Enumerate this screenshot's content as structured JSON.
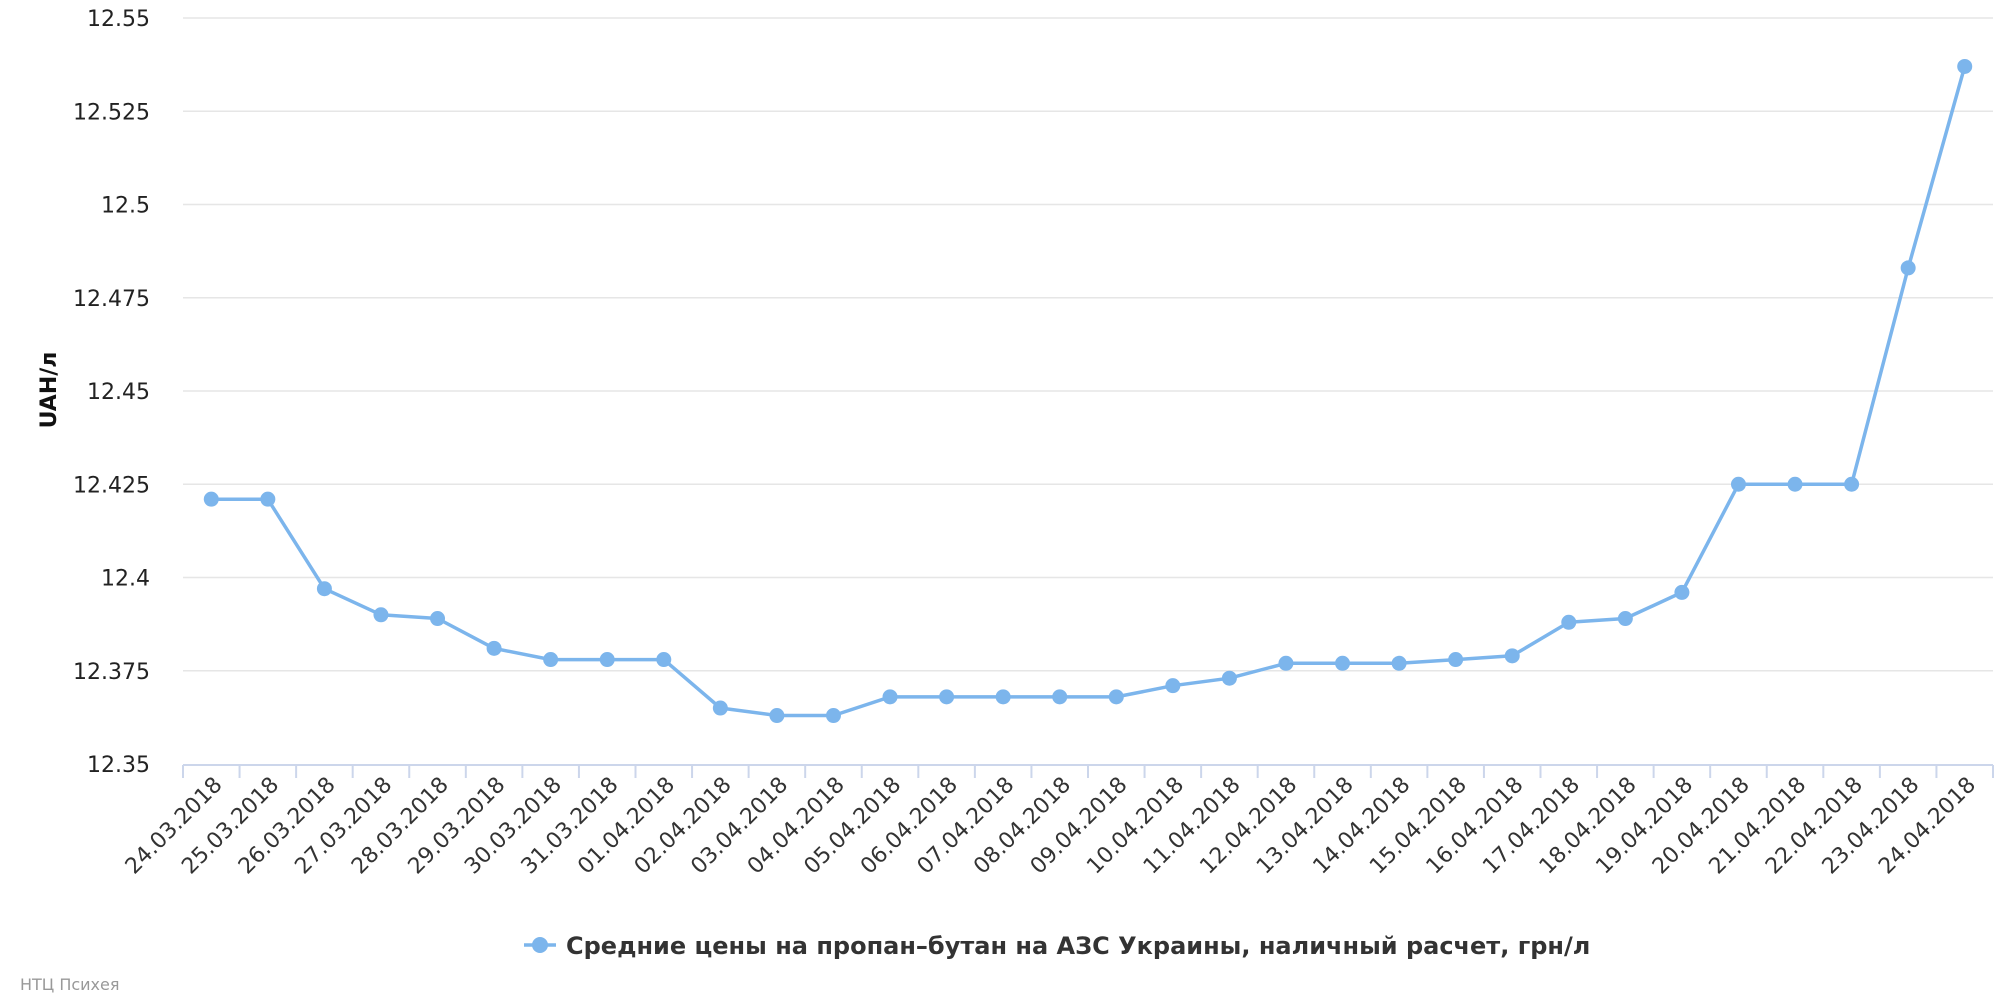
{
  "chart_data": {
    "type": "line",
    "title": "",
    "xlabel": "",
    "ylabel": "UAH/л",
    "ylim": [
      12.35,
      12.55
    ],
    "yticks": [
      "12.35",
      "12.375",
      "12.4",
      "12.425",
      "12.45",
      "12.475",
      "12.5",
      "12.525",
      "12.55"
    ],
    "grid": true,
    "legend_position": "bottom-center",
    "categories": [
      "24.03.2018",
      "25.03.2018",
      "26.03.2018",
      "27.03.2018",
      "28.03.2018",
      "29.03.2018",
      "30.03.2018",
      "31.03.2018",
      "01.04.2018",
      "02.04.2018",
      "03.04.2018",
      "04.04.2018",
      "05.04.2018",
      "06.04.2018",
      "07.04.2018",
      "08.04.2018",
      "09.04.2018",
      "10.04.2018",
      "11.04.2018",
      "12.04.2018",
      "13.04.2018",
      "14.04.2018",
      "15.04.2018",
      "16.04.2018",
      "17.04.2018",
      "18.04.2018",
      "19.04.2018",
      "20.04.2018",
      "21.04.2018",
      "22.04.2018",
      "23.04.2018",
      "24.04.2018"
    ],
    "series": [
      {
        "name": "Средние цены на пропан–бутан на АЗС Украины, наличный расчет, грн/л",
        "color": "#7cb5ec",
        "values": [
          12.421,
          12.421,
          12.397,
          12.39,
          12.389,
          12.381,
          12.378,
          12.378,
          12.378,
          12.365,
          12.363,
          12.363,
          12.368,
          12.368,
          12.368,
          12.368,
          12.368,
          12.371,
          12.373,
          12.377,
          12.377,
          12.377,
          12.378,
          12.379,
          12.388,
          12.389,
          12.396,
          12.425,
          12.425,
          12.425,
          12.483,
          12.537
        ]
      }
    ]
  },
  "credit": "НТЦ Психея"
}
